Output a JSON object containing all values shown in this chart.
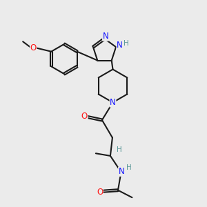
{
  "bg_color": "#ebebeb",
  "bond_color": "#1a1a1a",
  "N_color": "#1414ff",
  "O_color": "#ff1414",
  "H_color": "#5c9999",
  "line_width": 1.5,
  "font_size": 8.5,
  "fig_size": [
    3.0,
    3.0
  ],
  "dpi": 100,
  "dbl_off": 0.05,
  "xlim": [
    0,
    10
  ],
  "ylim": [
    0,
    10
  ]
}
